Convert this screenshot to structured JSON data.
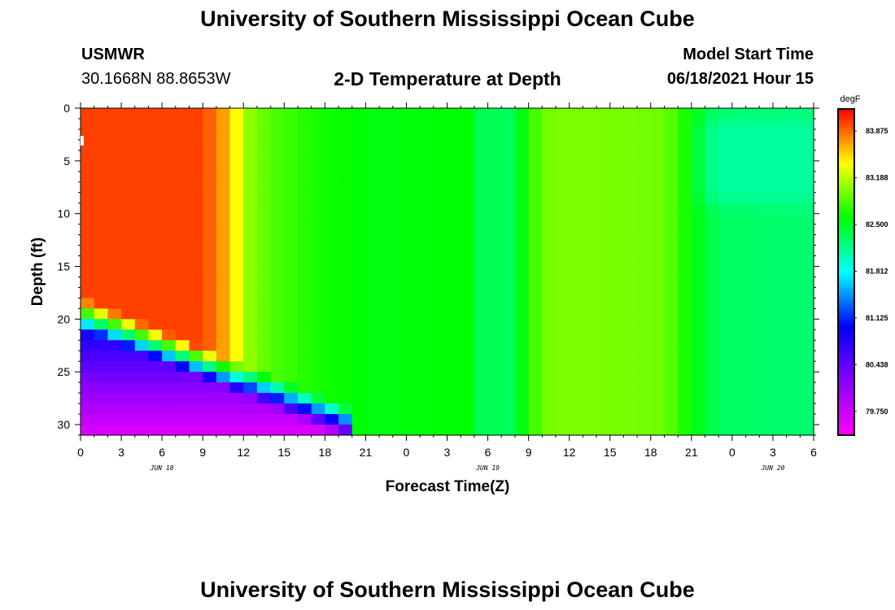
{
  "page": {
    "title": "University of Southern Mississippi Ocean Cube",
    "footer_title": "University of Southern Mississippi Ocean Cube"
  },
  "station": {
    "id": "USMWR",
    "coords": "30.1668N  88.8653W"
  },
  "model": {
    "label": "Model Start Time",
    "start": "06/18/2021 Hour 15"
  },
  "chart_data": {
    "type": "heatmap",
    "title": "2-D Temperature at Depth",
    "xlabel": "Forecast Time(Z)",
    "ylabel": "Depth (ft)",
    "x_ticks": [
      "0",
      "3",
      "6",
      "9",
      "12",
      "15",
      "18",
      "21",
      "0",
      "3",
      "6",
      "9",
      "12",
      "15",
      "18",
      "21",
      "0",
      "3",
      "6"
    ],
    "x_dates": [
      {
        "label": "JUN 18",
        "hour_index": 6
      },
      {
        "label": "JUN 19",
        "hour_index": 30
      },
      {
        "label": "JUN 20",
        "hour_index": 51
      }
    ],
    "x_range_hours": [
      0,
      54
    ],
    "y_ticks": [
      0,
      5,
      10,
      15,
      20,
      25,
      30
    ],
    "y_range": [
      0,
      31
    ],
    "y_inverted": true,
    "colorbar": {
      "unit": "degF",
      "range": [
        79.4,
        84.2
      ],
      "tick_values": [
        83.875,
        83.188,
        82.5,
        81.812,
        81.125,
        80.438,
        79.75
      ],
      "tick_labels": [
        "83.875",
        "83.188",
        "82.500",
        "81.812",
        "81.125",
        "80.438",
        "79.750"
      ],
      "colors": [
        "#ff00ff",
        "#8800ff",
        "#0000ff",
        "#00ffff",
        "#00ff00",
        "#ffff00",
        "#ff0000"
      ]
    },
    "time_profile": [
      {
        "h": 0,
        "v": 84.0
      },
      {
        "h": 9,
        "v": 84.0
      },
      {
        "h": 10.5,
        "v": 83.7
      },
      {
        "h": 11.5,
        "v": 83.4
      },
      {
        "h": 12.5,
        "v": 83.05
      },
      {
        "h": 14,
        "v": 82.85
      },
      {
        "h": 17,
        "v": 82.68
      },
      {
        "h": 22,
        "v": 82.55
      },
      {
        "h": 26,
        "v": 82.58
      },
      {
        "h": 29,
        "v": 82.6
      },
      {
        "h": 29.5,
        "v": 82.35
      },
      {
        "h": 32,
        "v": 82.3
      },
      {
        "h": 32.5,
        "v": 82.55
      },
      {
        "h": 34,
        "v": 82.95
      },
      {
        "h": 36,
        "v": 83.0
      },
      {
        "h": 43,
        "v": 82.95
      },
      {
        "h": 45,
        "v": 82.6
      },
      {
        "h": 47,
        "v": 82.3
      },
      {
        "h": 54,
        "v": 82.25
      }
    ],
    "deep_layer": {
      "description": "cold bottom layer",
      "depth_start_ft": 21,
      "depth_end_ft": 31,
      "end_hour": 19,
      "surface_value": 80.9,
      "bottom_value": 79.6
    },
    "late_surface_cooling": {
      "start_hour": 45,
      "depth_ft": [
        2,
        8
      ],
      "value": 82.1
    }
  }
}
